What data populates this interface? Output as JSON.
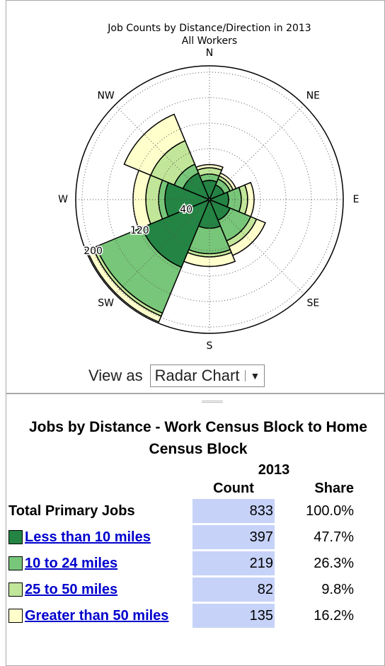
{
  "chart_data": {
    "type": "polar_bar",
    "title": "Job Counts by Distance/Direction in 2013",
    "subtitle": "All Workers",
    "categories": [
      "N",
      "NE",
      "E",
      "SE",
      "S",
      "SW",
      "W",
      "NW"
    ],
    "series": [
      {
        "color": "#238443",
        "values": [
          30,
          25,
          30,
          35,
          45,
          115,
          70,
          45
        ]
      },
      {
        "color": "#78c679",
        "values": [
          10,
          10,
          20,
          35,
          40,
          78,
          10,
          15
        ]
      },
      {
        "color": "#c2e699",
        "values": [
          10,
          5,
          10,
          10,
          5,
          5,
          20,
          40
        ]
      },
      {
        "color": "#ffffcc",
        "values": [
          5,
          5,
          10,
          15,
          15,
          10,
          20,
          45
        ]
      }
    ],
    "rlim": [
      0,
      210
    ],
    "rticks": [
      40,
      120,
      200
    ],
    "rminor": [
      80,
      160
    ],
    "grid": true
  },
  "controls": {
    "view_label": "View as",
    "view_value": "Radar Chart"
  },
  "table": {
    "title": "Jobs by Distance - Work Census Block to Home Census Block",
    "year": "2013",
    "columns": [
      "Count",
      "Share"
    ],
    "rows": [
      {
        "label": "Total Primary Jobs",
        "count": 833,
        "share": "100.0%"
      },
      {
        "label": "Less than 10 miles",
        "count": 397,
        "share": "47.7%"
      },
      {
        "label": "10 to 24 miles",
        "count": 219,
        "share": "26.3%"
      },
      {
        "label": "25 to 50 miles",
        "count": 82,
        "share": "9.8%"
      },
      {
        "label": "Greater than 50 miles",
        "count": 135,
        "share": "16.2%"
      }
    ]
  }
}
